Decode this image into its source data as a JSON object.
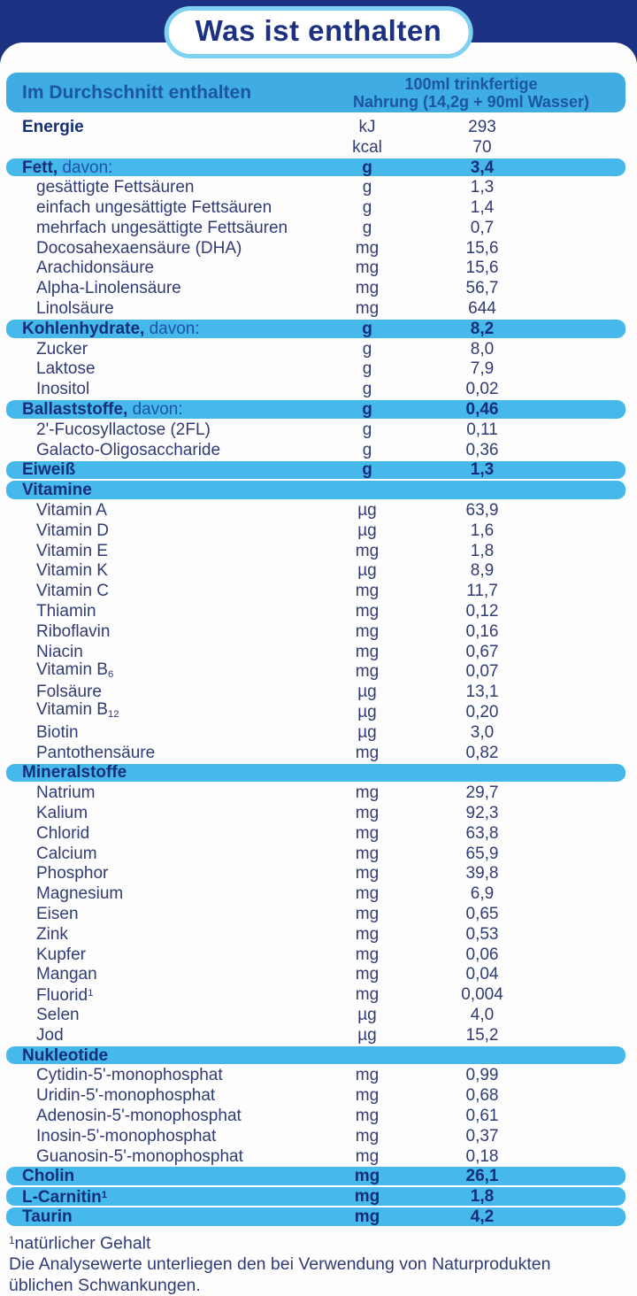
{
  "colors": {
    "navy": "#1d3182",
    "header_blue": "#3fade3",
    "row_blue": "#46b8ec",
    "text": "#303c73",
    "dark_text": "#132f78",
    "mid_blue": "#1b55a5",
    "badge_border": "#7fd1f1"
  },
  "badge": {
    "title": "Was ist enthalten"
  },
  "table": {
    "header": {
      "left": "Im Durchschnitt enthalten",
      "right_line1": "100ml trinkfertige",
      "right_line2": "Nahrung (14,2g + 90ml Wasser)"
    },
    "rows": [
      {
        "style": "main",
        "label": "Energie",
        "unit": "kJ",
        "value": "293"
      },
      {
        "style": "cont",
        "label": "",
        "unit": "kcal",
        "value": "70"
      },
      {
        "style": "section",
        "label": "Fett,",
        "suffix": "davon:",
        "unit": "g",
        "value": "3,4"
      },
      {
        "style": "item",
        "label": "gesättigte Fettsäuren",
        "unit": "g",
        "value": "1,3"
      },
      {
        "style": "item",
        "label": "einfach ungesättigte Fettsäuren",
        "unit": "g",
        "value": "1,4"
      },
      {
        "style": "item",
        "label": "mehrfach ungesättigte Fettsäuren",
        "unit": "g",
        "value": "0,7"
      },
      {
        "style": "item",
        "label": "Docosahexaensäure (DHA)",
        "unit": "mg",
        "value": "15,6"
      },
      {
        "style": "item",
        "label": "Arachidonsäure",
        "unit": "mg",
        "value": "15,6"
      },
      {
        "style": "item",
        "label": "Alpha-Linolensäure",
        "unit": "mg",
        "value": "56,7"
      },
      {
        "style": "item",
        "label": "Linolsäure",
        "unit": "mg",
        "value": "644"
      },
      {
        "style": "section",
        "label": "Kohlenhydrate,",
        "suffix": "davon:",
        "unit": "g",
        "value": "8,2"
      },
      {
        "style": "item",
        "label": "Zucker",
        "unit": "g",
        "value": "8,0"
      },
      {
        "style": "item",
        "label": "Laktose",
        "unit": "g",
        "value": "7,9"
      },
      {
        "style": "item",
        "label": "Inositol",
        "unit": "g",
        "value": "0,02"
      },
      {
        "style": "section",
        "label": "Ballaststoffe,",
        "suffix": "davon:",
        "unit": "g",
        "value": "0,46"
      },
      {
        "style": "item",
        "label": "2'-Fucosyllactose (2FL)",
        "unit": "g",
        "value": "0,11"
      },
      {
        "style": "item",
        "label": "Galacto-Oligosaccharide",
        "unit": "g",
        "value": "0,36"
      },
      {
        "style": "section",
        "label": "Eiweiß",
        "unit": "g",
        "value": "1,3"
      },
      {
        "style": "section",
        "label": "Vitamine",
        "unit": "",
        "value": ""
      },
      {
        "style": "item",
        "label": "Vitamin A",
        "unit": "µg",
        "value": "63,9"
      },
      {
        "style": "item",
        "label": "Vitamin D",
        "unit": "µg",
        "value": "1,6"
      },
      {
        "style": "item",
        "label": "Vitamin E",
        "unit": "mg",
        "value": "1,8"
      },
      {
        "style": "item",
        "label": "Vitamin K",
        "unit": "µg",
        "value": "8,9"
      },
      {
        "style": "item",
        "label": "Vitamin C",
        "unit": "mg",
        "value": "11,7"
      },
      {
        "style": "item",
        "label": "Thiamin",
        "unit": "mg",
        "value": "0,12"
      },
      {
        "style": "item",
        "label": "Riboflavin",
        "unit": "mg",
        "value": "0,16"
      },
      {
        "style": "item",
        "label": "Niacin",
        "unit": "mg",
        "value": "0,67"
      },
      {
        "style": "item",
        "label": "Vitamin B",
        "sub": "6",
        "unit": "mg",
        "value": "0,07"
      },
      {
        "style": "item",
        "label": "Folsäure",
        "unit": "µg",
        "value": "13,1"
      },
      {
        "style": "item",
        "label": "Vitamin B",
        "sub": "12",
        "unit": "µg",
        "value": "0,20"
      },
      {
        "style": "item",
        "label": "Biotin",
        "unit": "µg",
        "value": "3,0"
      },
      {
        "style": "item",
        "label": "Pantothensäure",
        "unit": "mg",
        "value": "0,82"
      },
      {
        "style": "section",
        "label": "Mineralstoffe",
        "unit": "",
        "value": ""
      },
      {
        "style": "item",
        "label": "Natrium",
        "unit": "mg",
        "value": "29,7"
      },
      {
        "style": "item",
        "label": "Kalium",
        "unit": "mg",
        "value": "92,3"
      },
      {
        "style": "item",
        "label": "Chlorid",
        "unit": "mg",
        "value": "63,8"
      },
      {
        "style": "item",
        "label": "Calcium",
        "unit": "mg",
        "value": "65,9"
      },
      {
        "style": "item",
        "label": "Phosphor",
        "unit": "mg",
        "value": "39,8"
      },
      {
        "style": "item",
        "label": "Magnesium",
        "unit": "mg",
        "value": "6,9"
      },
      {
        "style": "item",
        "label": "Eisen",
        "unit": "mg",
        "value": "0,65"
      },
      {
        "style": "item",
        "label": "Zink",
        "unit": "mg",
        "value": "0,53"
      },
      {
        "style": "item",
        "label": "Kupfer",
        "unit": "mg",
        "value": "0,06"
      },
      {
        "style": "item",
        "label": "Mangan",
        "unit": "mg",
        "value": "0,04"
      },
      {
        "style": "item",
        "label": "Fluorid",
        "sup": "1",
        "unit": "mg",
        "value": "0,004"
      },
      {
        "style": "item",
        "label": "Selen",
        "unit": "µg",
        "value": "4,0"
      },
      {
        "style": "item",
        "label": "Jod",
        "unit": "µg",
        "value": "15,2"
      },
      {
        "style": "section",
        "label": "Nukleotide",
        "unit": "",
        "value": ""
      },
      {
        "style": "item",
        "label": "Cytidin-5'-monophosphat",
        "unit": "mg",
        "value": "0,99"
      },
      {
        "style": "item",
        "label": "Uridin-5'-monophosphat",
        "unit": "mg",
        "value": "0,68"
      },
      {
        "style": "item",
        "label": "Adenosin-5'-monophosphat",
        "unit": "mg",
        "value": "0,61"
      },
      {
        "style": "item",
        "label": "Inosin-5'-monophosphat",
        "unit": "mg",
        "value": "0,37"
      },
      {
        "style": "item",
        "label": "Guanosin-5'-monophosphat",
        "unit": "mg",
        "value": "0,18"
      },
      {
        "style": "section",
        "label": "Cholin",
        "unit": "mg",
        "value": "26,1"
      },
      {
        "style": "section",
        "label": "L-Carnitin",
        "sup": "1",
        "unit": "mg",
        "value": "1,8"
      },
      {
        "style": "section",
        "label": "Taurin",
        "unit": "mg",
        "value": "4,2"
      }
    ]
  },
  "footer": {
    "footnote_sup": "1",
    "footnote_text": "natürlicher Gehalt",
    "note_line1": "Die Analysewerte unterliegen den bei Verwendung von Naturprodukten",
    "note_line2": "üblichen Schwankungen."
  }
}
